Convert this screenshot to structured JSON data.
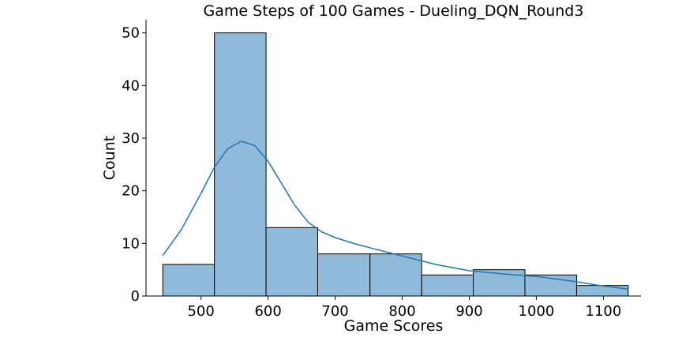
{
  "chart_data": {
    "type": "bar",
    "title": "Game Steps of 100 Games - Dueling_DQN_Round3",
    "xlabel": "Game Scores",
    "ylabel": "Count",
    "xlim": [
      418,
      1156
    ],
    "ylim": [
      0,
      52.5
    ],
    "xticks": [
      500,
      600,
      700,
      800,
      900,
      1000,
      1100
    ],
    "yticks": [
      0,
      10,
      20,
      30,
      40,
      50
    ],
    "bin_edges": [
      443,
      520,
      597,
      674,
      752,
      829,
      906,
      983,
      1060,
      1137
    ],
    "values": [
      6,
      50,
      13,
      8,
      8,
      4,
      5,
      4,
      2
    ],
    "kde": {
      "color": "#1f77b4",
      "x": [
        443,
        470,
        500,
        520,
        540,
        560,
        580,
        600,
        620,
        640,
        660,
        680,
        700,
        730,
        760,
        800,
        850,
        900,
        950,
        1000,
        1050,
        1100,
        1137
      ],
      "y": [
        7.7,
        12.5,
        19.5,
        24.5,
        28.0,
        29.4,
        28.6,
        25.6,
        21.4,
        17.2,
        14.0,
        12.2,
        11.1,
        9.9,
        8.9,
        7.6,
        6.0,
        4.8,
        4.2,
        3.7,
        2.9,
        1.9,
        1.3
      ]
    },
    "bar_color": "#8fbad9",
    "grid": false
  }
}
